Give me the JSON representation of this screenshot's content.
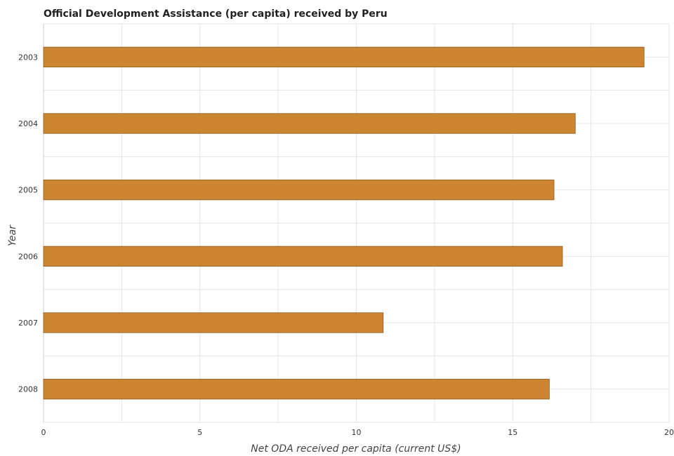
{
  "chart_data": {
    "type": "bar",
    "orientation": "horizontal",
    "title": "Official Development Assistance (per capita) received by Peru",
    "xlabel": "Net ODA received per capita (current US$)",
    "ylabel": "Year",
    "categories": [
      "2003",
      "2004",
      "2005",
      "2006",
      "2007",
      "2008"
    ],
    "values": [
      19.2,
      17.0,
      16.32,
      16.59,
      10.86,
      16.17
    ],
    "xlim": [
      0,
      20
    ],
    "xticks": [
      "0",
      "5",
      "10",
      "15",
      "20"
    ],
    "grid": true,
    "bar_color": "#cd8532"
  }
}
